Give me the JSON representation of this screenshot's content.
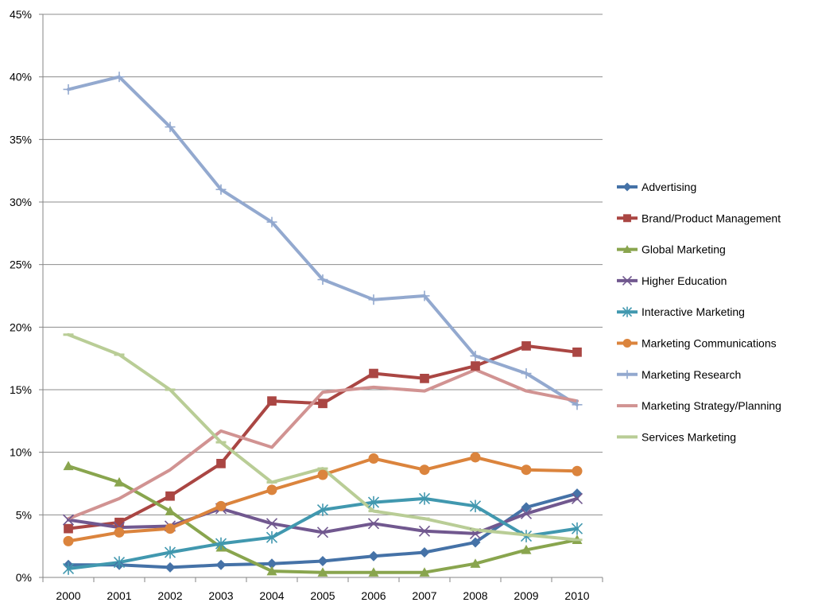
{
  "chart_data": {
    "type": "line",
    "title": "",
    "xlabel": "",
    "ylabel": "",
    "categories": [
      "2000",
      "2001",
      "2002",
      "2003",
      "2004",
      "2005",
      "2006",
      "2007",
      "2008",
      "2009",
      "2010"
    ],
    "ylim": [
      0,
      45
    ],
    "yticks": [
      0,
      5,
      10,
      15,
      20,
      25,
      30,
      35,
      40,
      45
    ],
    "ytick_labels": [
      "0%",
      "5%",
      "10%",
      "15%",
      "20%",
      "25%",
      "30%",
      "35%",
      "40%",
      "45%"
    ],
    "grid": "horizontal",
    "legend_position": "right",
    "series": [
      {
        "name": "Advertising",
        "color": "#4572A7",
        "marker": "diamond",
        "values": [
          1.0,
          1.0,
          0.8,
          1.0,
          1.1,
          1.3,
          1.7,
          2.0,
          2.8,
          5.6,
          6.7
        ]
      },
      {
        "name": "Brand/Product Management",
        "color": "#AA4643",
        "marker": "square",
        "values": [
          3.9,
          4.4,
          6.5,
          9.1,
          14.1,
          13.9,
          16.3,
          15.9,
          16.9,
          18.5,
          18.0
        ]
      },
      {
        "name": "Global Marketing",
        "color": "#89A54E",
        "marker": "triangle",
        "values": [
          8.9,
          7.6,
          5.3,
          2.4,
          0.5,
          0.4,
          0.4,
          0.4,
          1.1,
          2.2,
          3.0
        ]
      },
      {
        "name": "Higher Education",
        "color": "#71588F",
        "marker": "x",
        "values": [
          4.6,
          4.0,
          4.1,
          5.5,
          4.3,
          3.6,
          4.3,
          3.7,
          3.5,
          5.1,
          6.3
        ]
      },
      {
        "name": "Interactive Marketing",
        "color": "#4198AF",
        "marker": "star",
        "values": [
          0.7,
          1.2,
          2.0,
          2.7,
          3.2,
          5.4,
          6.0,
          6.3,
          5.7,
          3.3,
          3.9
        ]
      },
      {
        "name": "Marketing Communications",
        "color": "#DB843D",
        "marker": "circle",
        "values": [
          2.9,
          3.6,
          3.9,
          5.7,
          7.0,
          8.2,
          9.5,
          8.6,
          9.6,
          8.6,
          8.5
        ]
      },
      {
        "name": "Marketing Research",
        "color": "#93A9CF",
        "marker": "plus",
        "values": [
          39.0,
          40.0,
          36.0,
          31.0,
          28.4,
          23.8,
          22.2,
          22.5,
          17.7,
          16.3,
          13.8
        ]
      },
      {
        "name": "Marketing Strategy/Planning",
        "color": "#D19392",
        "marker": "none",
        "values": [
          4.7,
          6.3,
          8.6,
          11.7,
          10.4,
          14.8,
          15.2,
          14.9,
          16.6,
          14.9,
          14.1
        ]
      },
      {
        "name": "Services Marketing",
        "color": "#B9CD96",
        "marker": "dash",
        "values": [
          19.4,
          17.8,
          15.0,
          10.8,
          7.6,
          8.7,
          5.3,
          4.7,
          3.8,
          3.4,
          3.0
        ]
      }
    ]
  }
}
